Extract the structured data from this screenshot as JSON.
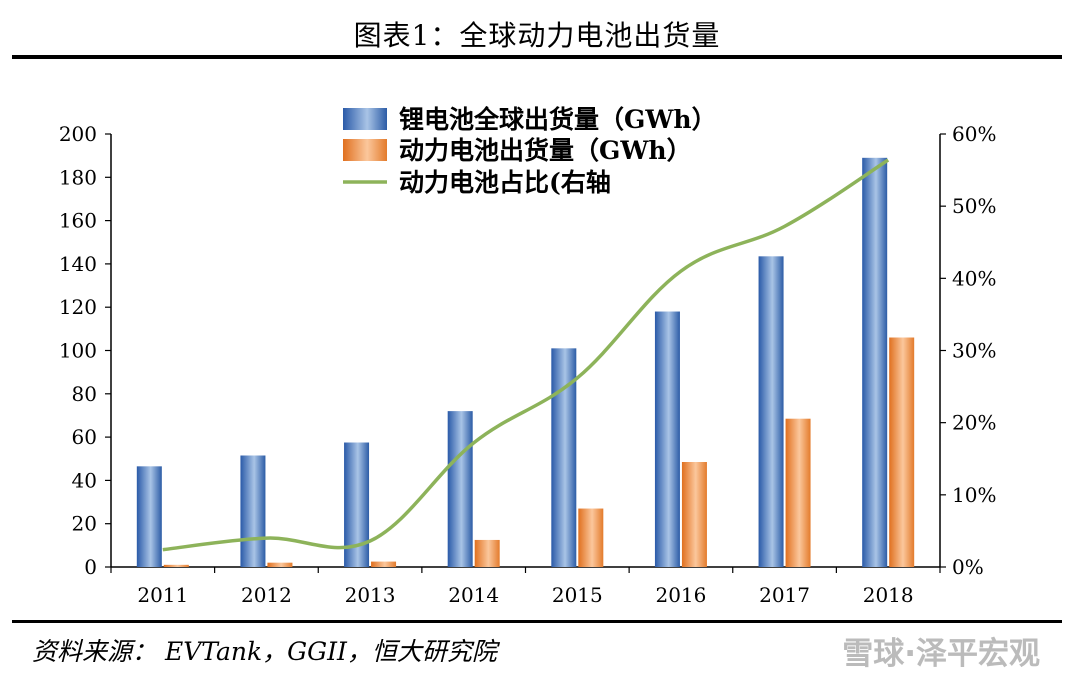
{
  "page": {
    "title": "图表1：全球动力电池出货量",
    "source": "资料来源：  EVTank，GGII，恒大研究院",
    "watermark": "雪球·泽平宏观"
  },
  "colors": {
    "bar_total": "#3f6fb5",
    "bar_power": "#e07a33",
    "line_share": "#8db35a",
    "axis": "#000000"
  },
  "chart_data": {
    "type": "bar",
    "categories": [
      "2011",
      "2012",
      "2013",
      "2014",
      "2015",
      "2016",
      "2017",
      "2018"
    ],
    "series": [
      {
        "name": "锂电池全球出货量（GWh）",
        "type": "bar",
        "axis": "left",
        "values": [
          46.5,
          51.5,
          57.5,
          72,
          101,
          118,
          143.5,
          189
        ]
      },
      {
        "name": "动力电池出货量（GWh）",
        "type": "bar",
        "axis": "left",
        "values": [
          1,
          2,
          2.5,
          12.5,
          27,
          48.5,
          68.5,
          106
        ]
      },
      {
        "name": "动力电池占比(右轴",
        "type": "line",
        "axis": "right",
        "values": [
          0.024,
          0.04,
          0.036,
          0.172,
          0.262,
          0.41,
          0.472,
          0.564
        ]
      }
    ],
    "y_left": {
      "min": 0,
      "max": 200,
      "step": 20,
      "ticks": [
        "0",
        "20",
        "40",
        "60",
        "80",
        "100",
        "120",
        "140",
        "160",
        "180",
        "200"
      ]
    },
    "y_right": {
      "min": 0,
      "max": 0.6,
      "step": 0.1,
      "ticks": [
        "0%",
        "10%",
        "20%",
        "30%",
        "40%",
        "50%",
        "60%"
      ]
    },
    "legend": "top-center",
    "grid": false
  }
}
